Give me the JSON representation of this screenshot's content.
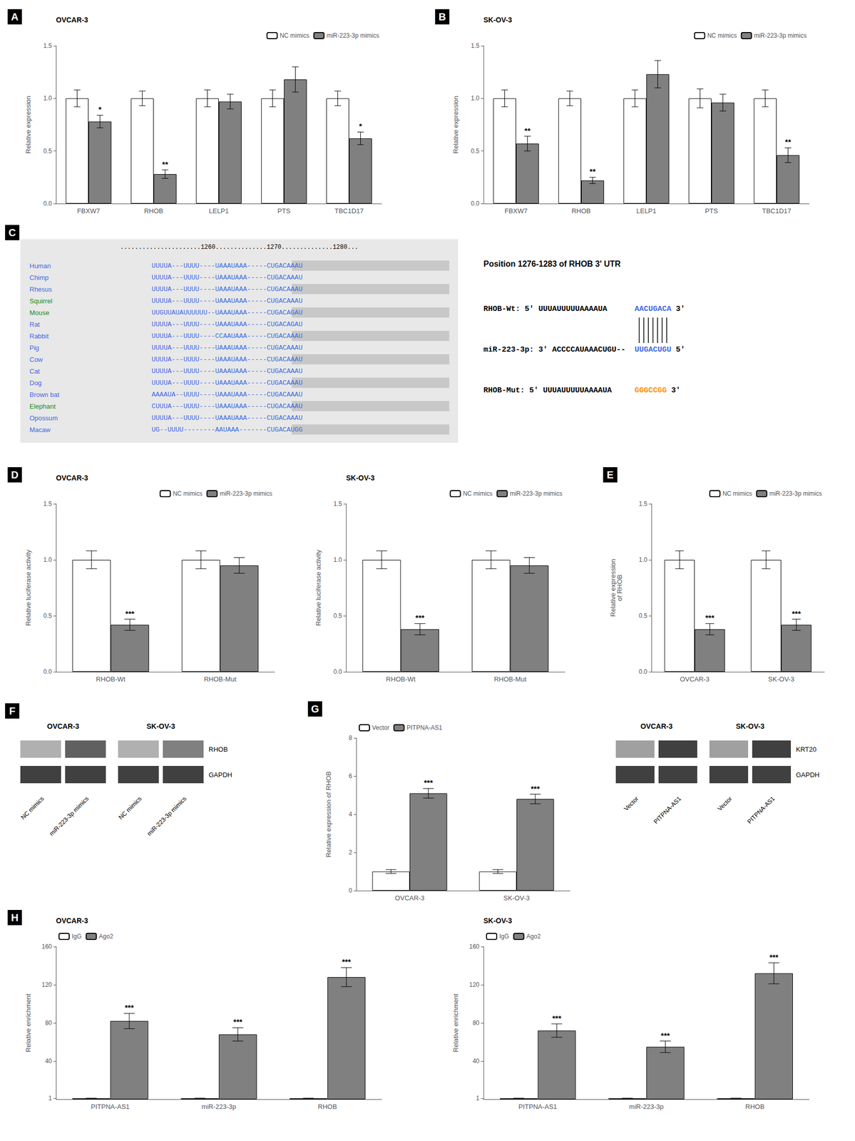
{
  "chart_data": [
    {
      "type": "bar",
      "panel_label": "A",
      "title": "OVCAR-3",
      "ylabel": "Relative expression",
      "categories": [
        "FBXW7",
        "RHOB",
        "LELP1",
        "PTS",
        "TBC1D17"
      ],
      "series": [
        {
          "name": "NC mimics",
          "color": "#FFFFFF",
          "values": [
            1.0,
            1.0,
            1.0,
            1.0,
            1.0
          ],
          "errors": [
            0.08,
            0.07,
            0.08,
            0.08,
            0.07
          ]
        },
        {
          "name": "miR-223-3p mimics",
          "color": "#808080",
          "values": [
            0.78,
            0.28,
            0.97,
            1.18,
            0.62
          ],
          "errors": [
            0.06,
            0.04,
            0.07,
            0.12,
            0.06
          ],
          "annotations": [
            "*",
            "**",
            null,
            null,
            "*"
          ]
        }
      ],
      "ylim": [
        0,
        1.5
      ],
      "yticks": [
        {
          "value": 0,
          "label": "0.0"
        },
        0.5,
        {
          "value": 1,
          "label": "1.0"
        },
        1.5
      ],
      "grid": false,
      "legend": "upper right"
    },
    {
      "type": "bar",
      "panel_label": "B",
      "title": "SK-OV-3",
      "ylabel": "Relative expression",
      "categories": [
        "FBXW7",
        "RHOB",
        "LELP1",
        "PTS",
        "TBC1D17"
      ],
      "series": [
        {
          "name": "NC mimics",
          "color": "#FFFFFF",
          "values": [
            1.0,
            1.0,
            1.0,
            1.0,
            1.0
          ],
          "errors": [
            0.08,
            0.07,
            0.08,
            0.09,
            0.08
          ]
        },
        {
          "name": "miR-223-3p mimics",
          "color": "#808080",
          "values": [
            0.57,
            0.22,
            1.23,
            0.96,
            0.46
          ],
          "errors": [
            0.07,
            0.03,
            0.13,
            0.08,
            0.07
          ],
          "annotations": [
            "**",
            "**",
            null,
            null,
            "**"
          ]
        }
      ],
      "ylim": [
        0,
        1.5
      ],
      "yticks": [
        {
          "value": 0,
          "label": "0.0"
        },
        0.5,
        {
          "value": 1,
          "label": "1.0"
        },
        1.5
      ],
      "grid": false,
      "legend": "upper right"
    },
    {
      "type": "alignment",
      "panel_label": "C",
      "header": "......................1260..............1270..............1280...",
      "sequence_color": "#4169E1",
      "rows": [
        {
          "name": "Human",
          "color": "#4169E1",
          "sequence": "UUUUA---UUUU----UAAAUAAA-----CUGACAAAU"
        },
        {
          "name": "Chimp",
          "color": "#4169E1",
          "sequence": "UUUUA---UUUU----UAAAUAAA-----CUGACAAAU"
        },
        {
          "name": "Rhesus",
          "color": "#4169E1",
          "sequence": "UUUUA---UUUU----UAAAUAAA-----CUGACAAAU"
        },
        {
          "name": "Squirrel",
          "color": "#228B22",
          "sequence": "UUUUA---UUUU----UAAAUAAA-----CUGACAAAU"
        },
        {
          "name": "Mouse",
          "color": "#228B22",
          "sequence": "UUGUUAUAUUUUUU--UAAAUAAA-----CUGACAGAU"
        },
        {
          "name": "Rat",
          "color": "#4169E1",
          "sequence": "UUUUA---UUUU----UAAAUAAA-----CUGACAGAU"
        },
        {
          "name": "Rabbit",
          "color": "#4169E1",
          "sequence": "UUUUA---UUUU----CCAAUAAA-----CUGACAAAU"
        },
        {
          "name": "Pig",
          "color": "#4169E1",
          "sequence": "UUUUA---UUUU----UAAAUAAA-----CUGACAAAU"
        },
        {
          "name": "Cow",
          "color": "#4169E1",
          "sequence": "UUUUA---UUUU----UAAAUAAA-----CUGACAAAU"
        },
        {
          "name": "Cat",
          "color": "#4169E1",
          "sequence": "UUUUA---UUUU----UAAAUAAA-----CUGACAAAU"
        },
        {
          "name": "Dog",
          "color": "#4169E1",
          "sequence": "UUUUA---UUUU----UAAAUAAA-----CUGACAAAU"
        },
        {
          "name": "Brown bat",
          "color": "#4169E1",
          "sequence": "AAAAUA--UUUU----UAAAUAAA-----CUGACAAAU"
        },
        {
          "name": "Elephant",
          "color": "#228B22",
          "sequence": "CUUUA---UUUU----UAAAUAAA-----CUGACAAAU"
        },
        {
          "name": "Opossum",
          "color": "#4169E1",
          "sequence": "UUUUA---UUUU----UAAAUAAA-----CUGACAAAU"
        },
        {
          "name": "Macaw",
          "color": "#4169E1",
          "sequence": "UG--UUUU--------AAUAAA-------CUGACAUGG"
        }
      ],
      "annotation_title": "Position 1276-1283 of RHOB 3' UTR",
      "base_pairs": 7,
      "lines": [
        [
          {
            "text": "RHOB-Wt: 5' UUUAUUUUUAAAAUA"
          },
          {
            "text": "AACUGACA",
            "color": "#4169E1"
          },
          {
            "text": " 3'"
          }
        ],
        [
          {
            "text": "miR-223-3p: 3' ACCCCAUAAACUGU--"
          },
          {
            "text": "UUGACUGU",
            "color": "#4169E1"
          },
          {
            "text": " 5'"
          }
        ],
        [
          {
            "text": "RHOB-Mut: 5' UUUAUUUUUAAAAUA"
          },
          {
            "text": "GGGCCGG",
            "color": "#FF8C00"
          },
          {
            "text": " 3'"
          }
        ]
      ]
    },
    {
      "type": "bar",
      "panel_label": "D",
      "title": "OVCAR-3",
      "ylabel": "Relative luciferase activity",
      "categories": [
        "RHOB-Wt",
        "RHOB-Mut"
      ],
      "series": [
        {
          "name": "NC mimics",
          "color": "#FFFFFF",
          "values": [
            1.0,
            1.0
          ],
          "errors": [
            0.08,
            0.08
          ]
        },
        {
          "name": "miR-223-3p mimics",
          "color": "#808080",
          "values": [
            0.42,
            0.95
          ],
          "errors": [
            0.05,
            0.07
          ],
          "annotations": [
            "***",
            null
          ]
        }
      ],
      "ylim": [
        0,
        1.5
      ],
      "yticks": [
        {
          "value": 0,
          "label": "0.0"
        },
        0.5,
        {
          "value": 1,
          "label": "1.0"
        },
        1.5
      ],
      "grid": false,
      "legend": "upper right"
    },
    {
      "type": "bar",
      "title": "SK-OV-3",
      "ylabel": "Relative luciferase activity",
      "categories": [
        "RHOB-Wt",
        "RHOB-Mut"
      ],
      "series": [
        {
          "name": "NC mimics",
          "color": "#FFFFFF",
          "values": [
            1.0,
            1.0
          ],
          "errors": [
            0.08,
            0.08
          ]
        },
        {
          "name": "miR-223-3p mimics",
          "color": "#808080",
          "values": [
            0.38,
            0.95
          ],
          "errors": [
            0.05,
            0.07
          ],
          "annotations": [
            "***",
            null
          ]
        }
      ],
      "ylim": [
        0,
        1.5
      ],
      "yticks": [
        {
          "value": 0,
          "label": "0.0"
        },
        0.5,
        {
          "value": 1,
          "label": "1.0"
        },
        1.5
      ],
      "grid": false,
      "legend": "upper right"
    },
    {
      "type": "bar",
      "panel_label": "E",
      "ylabel": "Relative expression\nof RHOB",
      "categories": [
        "OVCAR-3",
        "SK-OV-3"
      ],
      "series": [
        {
          "name": "NC mimics",
          "color": "#FFFFFF",
          "values": [
            1.0,
            1.0
          ],
          "errors": [
            0.08,
            0.08
          ]
        },
        {
          "name": "miR-223-3p mimics",
          "color": "#808080",
          "values": [
            0.38,
            0.42
          ],
          "errors": [
            0.05,
            0.05
          ],
          "annotations": [
            "***",
            "***"
          ]
        }
      ],
      "ylim": [
        0,
        1.5
      ],
      "yticks": [
        {
          "value": 0,
          "label": "0.0"
        },
        0.5,
        {
          "value": 1,
          "label": "1.0"
        },
        1.5
      ],
      "grid": false,
      "legend": "upper right"
    },
    {
      "type": "blot",
      "panel_label": "F",
      "groups": [
        "OVCAR-3",
        "SK-OV-3"
      ],
      "lanes": [
        "NC mimics",
        "miR-223-3p mimics",
        "NC mimics",
        "miR-223-3p mimics"
      ],
      "bands": [
        {
          "name": "RHOB",
          "colors": [
            "#B0B0B0",
            "#606060",
            "#B0B0B0",
            "#808080"
          ]
        },
        {
          "name": "GAPDH",
          "colors": [
            "#404040",
            "#404040",
            "#404040",
            "#404040"
          ]
        }
      ]
    },
    {
      "type": "bar",
      "panel_label": "G",
      "ylabel": "Relative expression of RHOB",
      "categories": [
        "OVCAR-3",
        "SK-OV-3"
      ],
      "series": [
        {
          "name": "Vector",
          "color": "#FFFFFF",
          "values": [
            1.0,
            1.0
          ],
          "errors": [
            0.1,
            0.1
          ]
        },
        {
          "name": "PITPNA-AS1",
          "color": "#808080",
          "values": [
            5.1,
            4.8
          ],
          "errors": [
            0.25,
            0.25
          ],
          "annotations": [
            "***",
            "***"
          ]
        }
      ],
      "ylim": [
        0,
        8
      ],
      "yticks": [
        0,
        2,
        4,
        6,
        8
      ],
      "grid": false,
      "legend": "upper left"
    },
    {
      "type": "blot",
      "groups": [
        "OVCAR-3",
        "SK-OV-3"
      ],
      "lanes": [
        "Vector",
        "PITPNA-AS1",
        "Vector",
        "PITPNA-AS1"
      ],
      "bands": [
        {
          "name": "KRT20",
          "colors": [
            "#A0A0A0",
            "#404040",
            "#A0A0A0",
            "#404040"
          ]
        },
        {
          "name": "GAPDH",
          "colors": [
            "#404040",
            "#404040",
            "#404040",
            "#404040"
          ]
        }
      ]
    },
    {
      "type": "bar",
      "panel_label": "H",
      "title": "OVCAR-3",
      "ylabel": "Relative enrichment",
      "categories": [
        "PITPNA-AS1",
        "miR-223-3p",
        "RHOB"
      ],
      "series": [
        {
          "name": "IgG",
          "color": "#FFFFFF",
          "values": [
            1.0,
            1.0,
            1.0
          ],
          "errors": [
            0.05,
            0.05,
            0.05
          ]
        },
        {
          "name": "Ago2",
          "color": "#808080",
          "values": [
            82,
            68,
            128
          ],
          "errors": [
            8,
            7,
            10
          ],
          "annotations": [
            "***",
            "***",
            "***"
          ]
        }
      ],
      "ylim": [
        0,
        160
      ],
      "yticks": [
        1,
        40,
        80,
        120,
        160
      ],
      "grid": false,
      "legend": "upper left"
    },
    {
      "type": "bar",
      "title": "SK-OV-3",
      "ylabel": "Relative enrichment",
      "categories": [
        "PITPNA-AS1",
        "miR-223-3p",
        "RHOB"
      ],
      "series": [
        {
          "name": "IgG",
          "color": "#FFFFFF",
          "values": [
            1.0,
            1.0,
            1.0
          ],
          "errors": [
            0.05,
            0.05,
            0.05
          ]
        },
        {
          "name": "Ago2",
          "color": "#808080",
          "values": [
            72,
            55,
            132
          ],
          "errors": [
            7,
            6,
            11
          ],
          "annotations": [
            "***",
            "***",
            "***"
          ]
        }
      ],
      "ylim": [
        0,
        160
      ],
      "yticks": [
        1,
        40,
        80,
        120,
        160
      ],
      "grid": false,
      "legend": "upper left"
    }
  ]
}
